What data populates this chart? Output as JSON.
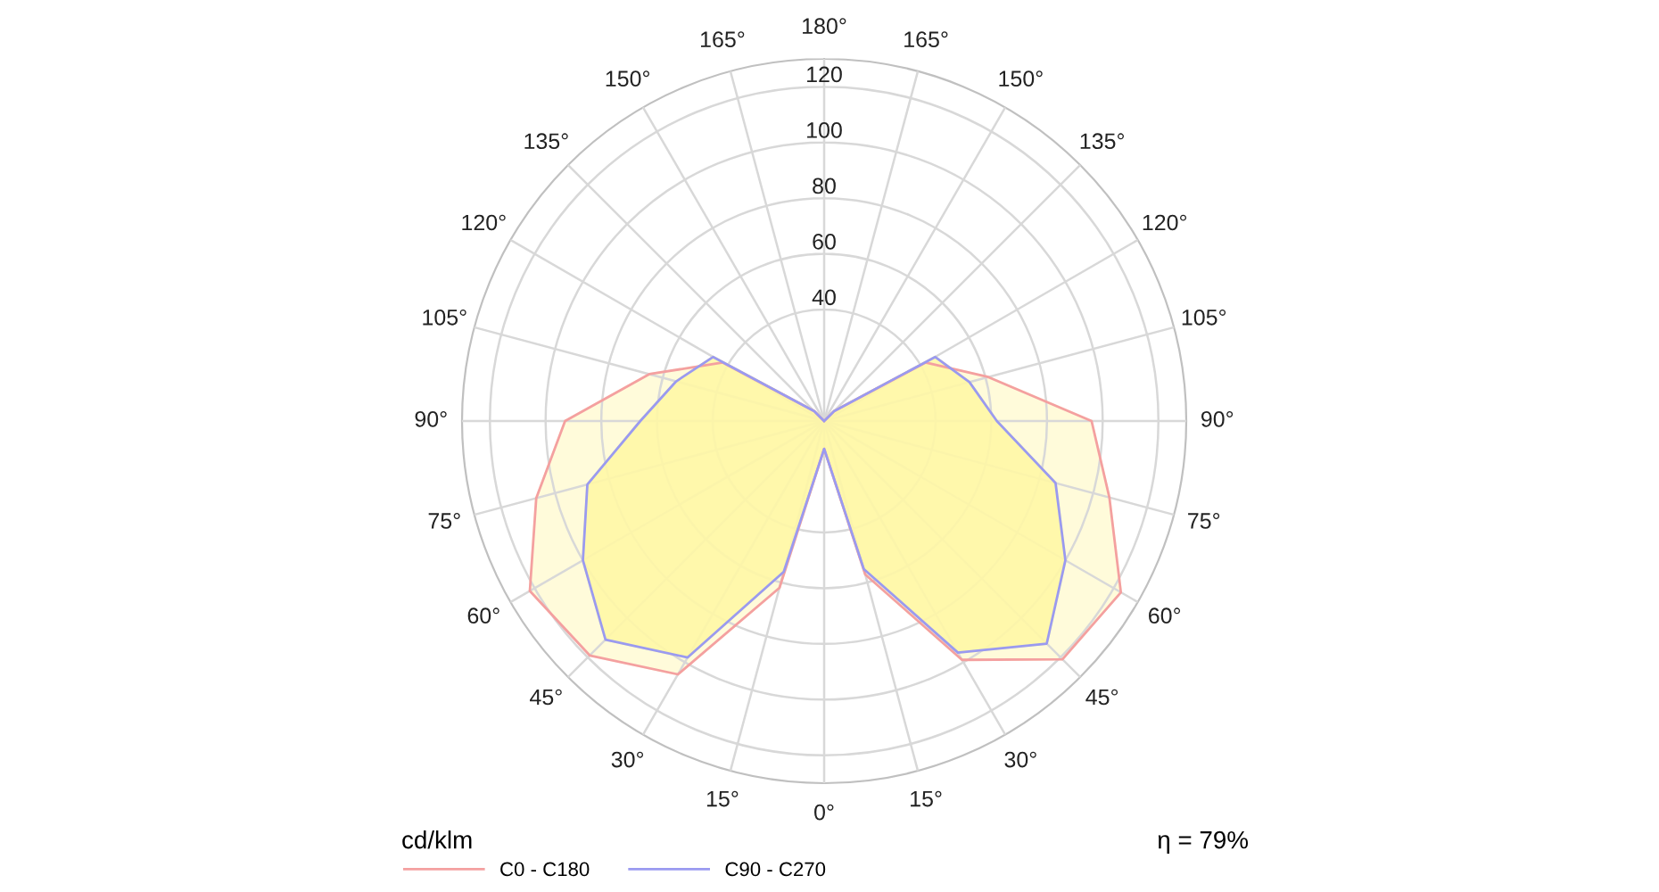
{
  "chart_data": {
    "type": "radar",
    "categories": [
      "180°",
      "165°",
      "150°",
      "135°",
      "120°",
      "105°",
      "90°",
      "75°",
      "60°",
      "45°",
      "30°",
      "15°",
      "0°",
      "15°",
      "30°",
      "45°",
      "60°",
      "75°",
      "90°",
      "105°",
      "120°",
      "135°",
      "150°",
      "165°"
    ],
    "series": [
      {
        "name": "C0 - C180",
        "color": "#f4a0a0",
        "values": [
          0,
          0,
          0,
          5,
          42,
          61,
          96,
          106,
          123,
          121,
          99,
          57,
          10,
          62,
          105,
          119,
          122,
          107,
          93,
          65,
          42,
          5,
          0,
          0
        ]
      },
      {
        "name": "C90 - C270",
        "color": "#9a9af0",
        "values": [
          0,
          0,
          0,
          5,
          46,
          54,
          62,
          86,
          100,
          113,
          96,
          55,
          10,
          56,
          98,
          111,
          100,
          88,
          66,
          55,
          46,
          5,
          0,
          0
        ]
      }
    ],
    "ylim": [
      0,
      130
    ],
    "yticks": [
      40,
      60,
      80,
      100,
      120
    ],
    "ylabel": "cd/klm",
    "annotations": [
      "η = 79%"
    ],
    "legend": "bottom left",
    "grid": true
  }
}
